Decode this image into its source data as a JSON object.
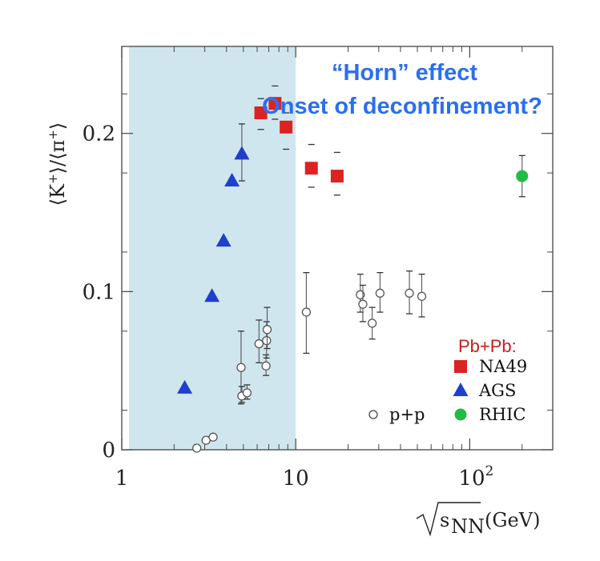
{
  "chart_data": {
    "type": "scatter",
    "x_scale": "log",
    "xlim": [
      1,
      300
    ],
    "ylim": [
      0,
      0.255
    ],
    "x_ticks": [
      {
        "value": 1,
        "label": "1"
      },
      {
        "value": 10,
        "label": "10"
      },
      {
        "value": 100,
        "label": "10",
        "sup": "2"
      }
    ],
    "y_ticks": [
      {
        "value": 0,
        "label": "0"
      },
      {
        "value": 0.1,
        "label": "0.1"
      },
      {
        "value": 0.2,
        "label": "0.2"
      }
    ],
    "ylabel": {
      "parts": [
        "⟨K",
        "+",
        "⟩/⟨π",
        "+",
        "⟩"
      ]
    },
    "xlabel": {
      "sub": "NN",
      "s": "s",
      "unit": "(GeV)"
    },
    "shaded_region": {
      "x_from": 1.1,
      "x_to": 10,
      "color": "#cfe6ee"
    },
    "annotations": {
      "line1": "“Horn” effect",
      "line2": "Onset of deconfinement?"
    },
    "legend": {
      "title": "Pb+Pb:",
      "entries": [
        {
          "label": "NA49",
          "marker": "square",
          "color": "#dd2222"
        },
        {
          "label": "AGS",
          "marker": "triangle",
          "color": "#1f3fcc"
        },
        {
          "label": "RHIC",
          "marker": "circle",
          "color": "#22bb44"
        }
      ],
      "pp_label": "p+p"
    },
    "series": [
      {
        "name": "NA49",
        "marker": "square",
        "color": "#dd2222",
        "points": [
          {
            "x": 6.3,
            "y": 0.213,
            "lo": 0.2025,
            "hi": 0.222
          },
          {
            "x": 7.6,
            "y": 0.219,
            "lo": 0.209,
            "hi": 0.23
          },
          {
            "x": 8.8,
            "y": 0.204,
            "lo": 0.19,
            "hi": 0.213
          },
          {
            "x": 12.3,
            "y": 0.178,
            "lo": 0.166,
            "hi": 0.193
          },
          {
            "x": 17.3,
            "y": 0.173,
            "lo": 0.161,
            "hi": 0.188
          }
        ]
      },
      {
        "name": "AGS",
        "marker": "triangle",
        "color": "#1f3fcc",
        "points": [
          {
            "x": 2.3,
            "y": 0.039
          },
          {
            "x": 3.3,
            "y": 0.097
          },
          {
            "x": 3.85,
            "y": 0.132
          },
          {
            "x": 4.3,
            "y": 0.17
          },
          {
            "x": 4.9,
            "y": 0.187,
            "lo": 0.17,
            "hi": 0.206
          }
        ]
      },
      {
        "name": "RHIC",
        "marker": "circle",
        "color": "#22bb44",
        "points": [
          {
            "x": 200,
            "y": 0.173,
            "lo": 0.16,
            "hi": 0.186
          }
        ]
      },
      {
        "name": "p+p",
        "marker": "open-circle",
        "color": "#555555",
        "points": [
          {
            "x": 2.7,
            "y": 0.001
          },
          {
            "x": 3.05,
            "y": 0.006
          },
          {
            "x": 3.35,
            "y": 0.008
          },
          {
            "x": 4.85,
            "y": 0.052,
            "lo": 0.029,
            "hi": 0.075
          },
          {
            "x": 4.9,
            "y": 0.034,
            "lo": 0.03,
            "hi": 0.04
          },
          {
            "x": 5.25,
            "y": 0.036,
            "lo": 0.032,
            "hi": 0.041
          },
          {
            "x": 6.15,
            "y": 0.067,
            "lo": 0.055,
            "hi": 0.082
          },
          {
            "x": 6.75,
            "y": 0.053,
            "lo": 0.047,
            "hi": 0.06
          },
          {
            "x": 6.8,
            "y": 0.069,
            "lo": 0.058,
            "hi": 0.081
          },
          {
            "x": 6.85,
            "y": 0.076,
            "lo": 0.064,
            "hi": 0.09
          },
          {
            "x": 11.5,
            "y": 0.087,
            "lo": 0.061,
            "hi": 0.112
          },
          {
            "x": 23.5,
            "y": 0.098,
            "lo": 0.087,
            "hi": 0.111
          },
          {
            "x": 24.3,
            "y": 0.092,
            "lo": 0.081,
            "hi": 0.104
          },
          {
            "x": 27.5,
            "y": 0.08,
            "lo": 0.07,
            "hi": 0.09
          },
          {
            "x": 30.5,
            "y": 0.099,
            "lo": 0.087,
            "hi": 0.112
          },
          {
            "x": 45,
            "y": 0.099,
            "lo": 0.086,
            "hi": 0.113
          },
          {
            "x": 53,
            "y": 0.097,
            "lo": 0.084,
            "hi": 0.111
          }
        ]
      }
    ]
  }
}
